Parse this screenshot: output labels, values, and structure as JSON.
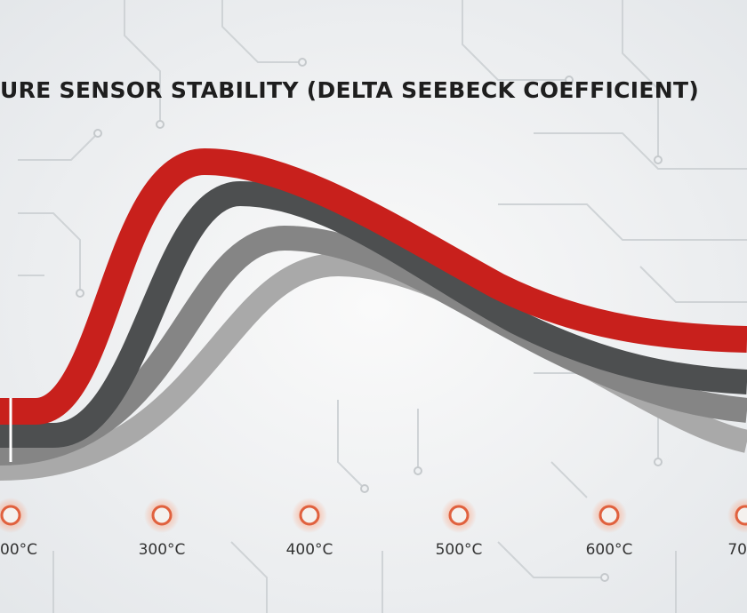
{
  "title": "URE SENSOR STABILITY (DELTA SEEBECK COEFFICIENT)",
  "axis": {
    "labels": [
      "00°C",
      "300°C",
      "400°C",
      "500°C",
      "600°C",
      "70"
    ]
  }
}
